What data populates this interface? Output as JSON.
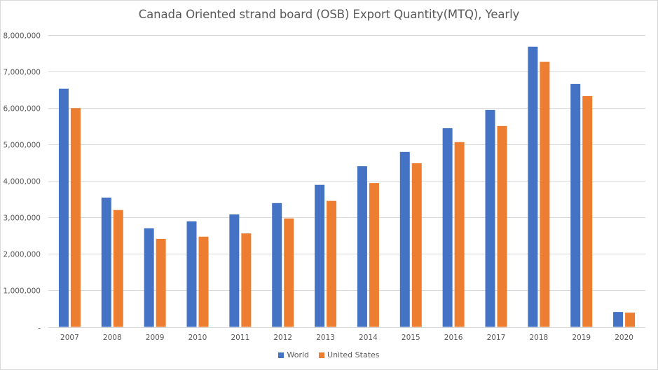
{
  "chart_data": {
    "type": "bar",
    "title": "Canada Oriented strand board (OSB) Export Quantity(MTQ), Yearly",
    "xlabel": "",
    "ylabel": "",
    "ylim": [
      0,
      8000000
    ],
    "grid": true,
    "legend_position": "bottom",
    "categories": [
      "2007",
      "2008",
      "2009",
      "2010",
      "2011",
      "2012",
      "2013",
      "2014",
      "2015",
      "2016",
      "2017",
      "2018",
      "2019",
      "2020"
    ],
    "y_ticks": [
      {
        "value": 0,
        "label": "-"
      },
      {
        "value": 1000000,
        "label": "1,000,000"
      },
      {
        "value": 2000000,
        "label": "2,000,000"
      },
      {
        "value": 3000000,
        "label": "3,000,000"
      },
      {
        "value": 4000000,
        "label": "4,000,000"
      },
      {
        "value": 5000000,
        "label": "5,000,000"
      },
      {
        "value": 6000000,
        "label": "6,000,000"
      },
      {
        "value": 7000000,
        "label": "7,000,000"
      },
      {
        "value": 8000000,
        "label": "8,000,000"
      }
    ],
    "series": [
      {
        "name": "World",
        "color": "#4472c4",
        "values": [
          6520000,
          3540000,
          2700000,
          2890000,
          3080000,
          3390000,
          3890000,
          4400000,
          4790000,
          5440000,
          5940000,
          7670000,
          6650000,
          410000
        ]
      },
      {
        "name": "United States",
        "color": "#ed7d31",
        "values": [
          5990000,
          3200000,
          2410000,
          2470000,
          2560000,
          2970000,
          3450000,
          3940000,
          4480000,
          5060000,
          5500000,
          7260000,
          6320000,
          390000
        ]
      }
    ]
  }
}
